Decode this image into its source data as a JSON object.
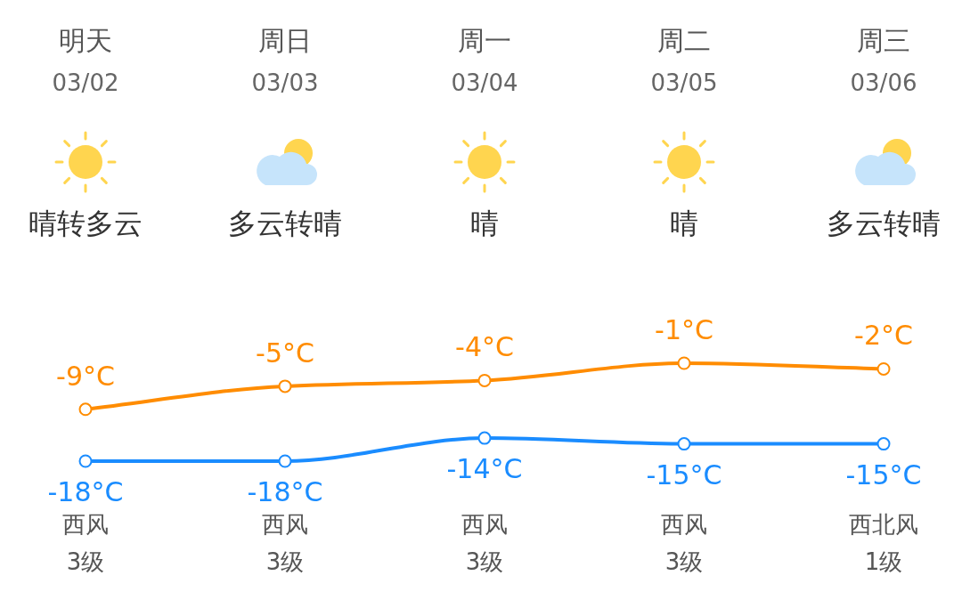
{
  "chart_data": {
    "type": "line",
    "categories": [
      "明天\n03/02",
      "周日\n03/03",
      "周一\n03/04",
      "周二\n03/05",
      "周三\n03/06"
    ],
    "series": [
      {
        "color": "#ff8c00",
        "values": [
          -9,
          -5,
          -4,
          -1,
          -2
        ],
        "value_labels": [
          "-9°C",
          "-5°C",
          "-4°C",
          "-1°C",
          "-2°C"
        ]
      },
      {
        "color": "#1a8cff",
        "values": [
          -18,
          -18,
          -14,
          -15,
          -15
        ],
        "value_labels": [
          "-18°C",
          "-18°C",
          "-14°C",
          "-15°C",
          "-15°C"
        ]
      }
    ],
    "marker": "circle",
    "annotations": [
      "晴转多云",
      "多云转晴",
      "晴",
      "晴",
      "多云转晴",
      "西风\n3级",
      "西风\n3级",
      "西风\n3级",
      "西风\n3级",
      "西北风\n1级"
    ]
  }
}
